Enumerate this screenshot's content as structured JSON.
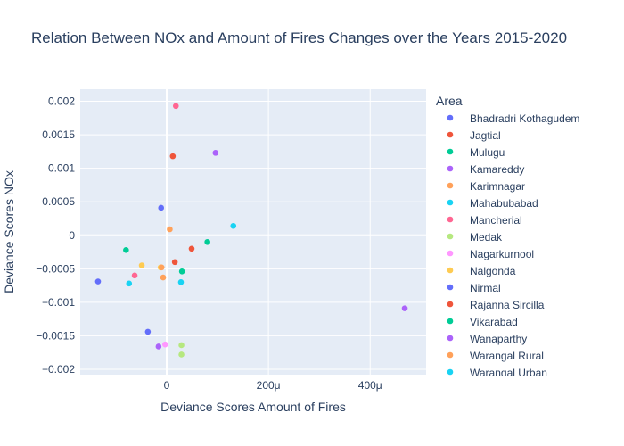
{
  "chart_data": {
    "type": "scatter",
    "title": "Relation Between NOx and Amount of Fires Changes over the Years 2015-2020",
    "xlabel": "Deviance Scores Amount of Fires",
    "ylabel": "Deviance Scores NOx",
    "xlim": [
      -0.00017,
      0.00051
    ],
    "ylim": [
      -0.00208,
      0.00218
    ],
    "x_ticks": [
      {
        "value": 0,
        "label": "0"
      },
      {
        "value": 0.0002,
        "label": "200μ"
      },
      {
        "value": 0.0004,
        "label": "400μ"
      }
    ],
    "y_ticks": [
      {
        "value": 0.002,
        "label": "0.002"
      },
      {
        "value": 0.0015,
        "label": "0.0015"
      },
      {
        "value": 0.001,
        "label": "0.001"
      },
      {
        "value": 0.0005,
        "label": "0.0005"
      },
      {
        "value": 0,
        "label": "0"
      },
      {
        "value": -0.0005,
        "label": "−0.0005"
      },
      {
        "value": -0.001,
        "label": "−0.001"
      },
      {
        "value": -0.0015,
        "label": "−0.0015"
      },
      {
        "value": -0.002,
        "label": "−0.002"
      }
    ],
    "grid": true,
    "legend_title": "Area",
    "legend_position": "right",
    "series": [
      {
        "name": "Bhadradri Kothagudem",
        "color": "#636efa",
        "points": [
          [
            -0.000135,
            -0.00069
          ]
        ]
      },
      {
        "name": "Jagtial",
        "color": "#ef553b",
        "points": [
          [
            1.2e-05,
            0.00118
          ]
        ]
      },
      {
        "name": "Mulugu",
        "color": "#00cc96",
        "points": [
          [
            -8e-05,
            -0.00022
          ]
        ]
      },
      {
        "name": "Kamareddy",
        "color": "#ab63fa",
        "points": [
          [
            9.6e-05,
            0.00123
          ]
        ]
      },
      {
        "name": "Karimnagar",
        "color": "#ffa15a",
        "points": [
          [
            6e-06,
            9e-05
          ]
        ]
      },
      {
        "name": "Mahabubabad",
        "color": "#19d3f3",
        "points": [
          [
            0.000131,
            0.00014
          ]
        ]
      },
      {
        "name": "Mancherial",
        "color": "#ff6692",
        "points": [
          [
            1.8e-05,
            0.00193
          ],
          [
            -6.3e-05,
            -0.0006
          ]
        ]
      },
      {
        "name": "Medak",
        "color": "#b6e880",
        "points": [
          [
            2.9e-05,
            -0.00164
          ],
          [
            2.9e-05,
            -0.00178
          ]
        ]
      },
      {
        "name": "Nagarkurnool",
        "color": "#ff97ff",
        "points": [
          [
            -3e-06,
            -0.00163
          ]
        ]
      },
      {
        "name": "Nalgonda",
        "color": "#fecb52",
        "points": [
          [
            -4.9e-05,
            -0.00045
          ],
          [
            -1.2e-05,
            -0.00048
          ]
        ]
      },
      {
        "name": "Nirmal",
        "color": "#636efa",
        "points": [
          [
            -1.1e-05,
            0.00041
          ],
          [
            -3.7e-05,
            -0.00144
          ]
        ]
      },
      {
        "name": "Rajanna Sircilla",
        "color": "#ef553b",
        "points": [
          [
            4.9e-05,
            -0.0002
          ],
          [
            1.6e-05,
            -0.0004
          ]
        ]
      },
      {
        "name": "Vikarabad",
        "color": "#00cc96",
        "points": [
          [
            8e-05,
            -0.0001
          ],
          [
            3e-05,
            -0.00054
          ]
        ]
      },
      {
        "name": "Wanaparthy",
        "color": "#ab63fa",
        "points": [
          [
            0.000468,
            -0.00109
          ],
          [
            -1.6e-05,
            -0.00166
          ]
        ]
      },
      {
        "name": "Warangal Rural",
        "color": "#ffa15a",
        "points": [
          [
            -7e-06,
            -0.00063
          ],
          [
            -1e-05,
            -0.00048
          ]
        ]
      },
      {
        "name": "Warangal Urban",
        "color": "#19d3f3",
        "points": [
          [
            -7.4e-05,
            -0.00072
          ],
          [
            2.8e-05,
            -0.0007
          ]
        ]
      }
    ]
  }
}
